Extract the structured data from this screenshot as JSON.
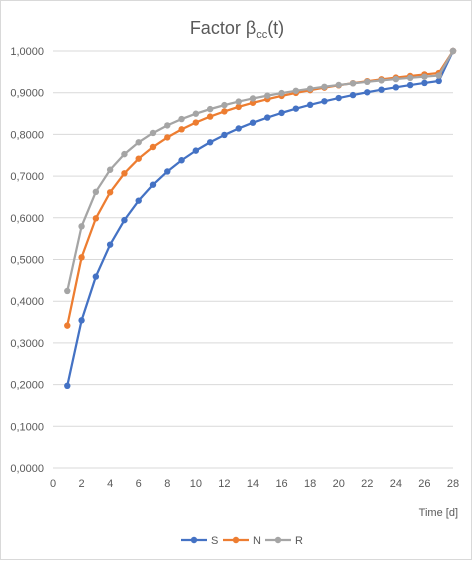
{
  "chart_data": {
    "type": "line",
    "title": {
      "main": "Factor β",
      "sub": "cc",
      "suffix": "(t)"
    },
    "xlabel": "Time [d]",
    "ylabel": "",
    "xlim": [
      0,
      28
    ],
    "ylim": [
      0,
      1
    ],
    "x_ticks": [
      0,
      2,
      4,
      6,
      8,
      10,
      12,
      14,
      16,
      18,
      20,
      22,
      24,
      26,
      28
    ],
    "y_ticks": [
      "0,0000",
      "0,1000",
      "0,2000",
      "0,3000",
      "0,4000",
      "0,5000",
      "0,6000",
      "0,7000",
      "0,8000",
      "0,9000",
      "1,0000"
    ],
    "grid": "horizontal",
    "legend": "bottom",
    "x": [
      1,
      2,
      3,
      4,
      5,
      6,
      7,
      8,
      9,
      10,
      11,
      12,
      13,
      14,
      15,
      16,
      17,
      18,
      19,
      20,
      21,
      22,
      23,
      24,
      25,
      26,
      27,
      28
    ],
    "series": [
      {
        "name": "S",
        "color": "#4472C4",
        "values": [
          0.1971,
          0.354,
          0.459,
          0.5356,
          0.5944,
          0.6411,
          0.6793,
          0.7111,
          0.738,
          0.7611,
          0.7811,
          0.7987,
          0.8142,
          0.828,
          0.8404,
          0.8516,
          0.8617,
          0.8709,
          0.8794,
          0.8872,
          0.8943,
          0.901,
          0.9072,
          0.9129,
          0.9183,
          0.9234,
          0.9281,
          1.0
        ]
      },
      {
        "name": "N",
        "color": "#ED7D31",
        "values": [
          0.3414,
          0.5051,
          0.5987,
          0.6612,
          0.7067,
          0.7418,
          0.7698,
          0.7928,
          0.8121,
          0.8285,
          0.8427,
          0.8551,
          0.866,
          0.8758,
          0.8845,
          0.8924,
          0.8996,
          0.9062,
          0.9122,
          0.9177,
          0.9229,
          0.9276,
          0.9321,
          0.9362,
          0.9401,
          0.9438,
          0.9472,
          1.0
        ]
      },
      {
        "name": "R",
        "color": "#A5A5A5",
        "values": [
          0.4245,
          0.5796,
          0.6623,
          0.7152,
          0.7527,
          0.7811,
          0.8034,
          0.8216,
          0.8368,
          0.8496,
          0.8606,
          0.8702,
          0.8787,
          0.8862,
          0.8929,
          0.899,
          0.9045,
          0.9096,
          0.9142,
          0.9185,
          0.9224,
          0.9261,
          0.9295,
          0.9327,
          0.9357,
          0.9385,
          0.9411,
          1.0
        ]
      }
    ]
  }
}
